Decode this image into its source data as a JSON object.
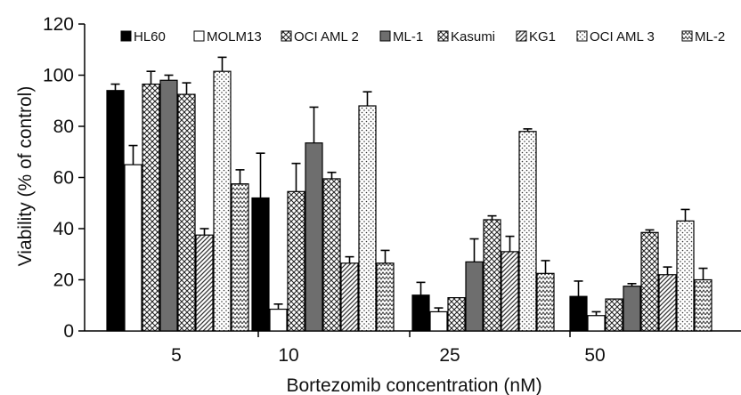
{
  "chart_data": {
    "type": "bar",
    "title": "",
    "xlabel": "Bortezomib concentration (nM)",
    "ylabel": "Viability (% of control)",
    "ylim": [
      0,
      120
    ],
    "yticks": [
      0,
      20,
      40,
      60,
      80,
      100,
      120
    ],
    "categories": [
      "5",
      "10",
      "25",
      "50"
    ],
    "grid": false,
    "legend_position": "top",
    "error_bars": "upper only",
    "series": [
      {
        "name": "HL60",
        "pattern": "solid-black",
        "values": [
          94,
          52,
          14,
          13.5
        ],
        "errors": [
          2.5,
          17.5,
          5,
          6
        ]
      },
      {
        "name": "MOLM13",
        "pattern": "white",
        "values": [
          65,
          8.5,
          7.5,
          6
        ],
        "errors": [
          7.5,
          2,
          1.5,
          1.5
        ]
      },
      {
        "name": "OCI AML 2",
        "pattern": "crosshatch",
        "values": [
          96.5,
          54.5,
          13,
          12.5
        ],
        "errors": [
          5,
          11,
          0,
          0
        ]
      },
      {
        "name": "ML-1",
        "pattern": "gray",
        "values": [
          98,
          73.5,
          27,
          17.5
        ],
        "errors": [
          2,
          14,
          9,
          1
        ]
      },
      {
        "name": "Kasumi",
        "pattern": "checker",
        "values": [
          92.5,
          59.5,
          43.5,
          38.5
        ],
        "errors": [
          4.5,
          2.5,
          1.5,
          1
        ]
      },
      {
        "name": "KG1",
        "pattern": "diagonal",
        "values": [
          37.5,
          26.5,
          31,
          22
        ],
        "errors": [
          2.5,
          2.5,
          6,
          3
        ]
      },
      {
        "name": "OCI AML 3",
        "pattern": "dots",
        "values": [
          101.5,
          88,
          78,
          43
        ],
        "errors": [
          5.5,
          5.5,
          1,
          4.5
        ]
      },
      {
        "name": "ML-2",
        "pattern": "zigzag",
        "values": [
          57.5,
          26.5,
          22.5,
          20
        ],
        "errors": [
          5.5,
          5,
          5,
          4.5
        ]
      }
    ]
  }
}
